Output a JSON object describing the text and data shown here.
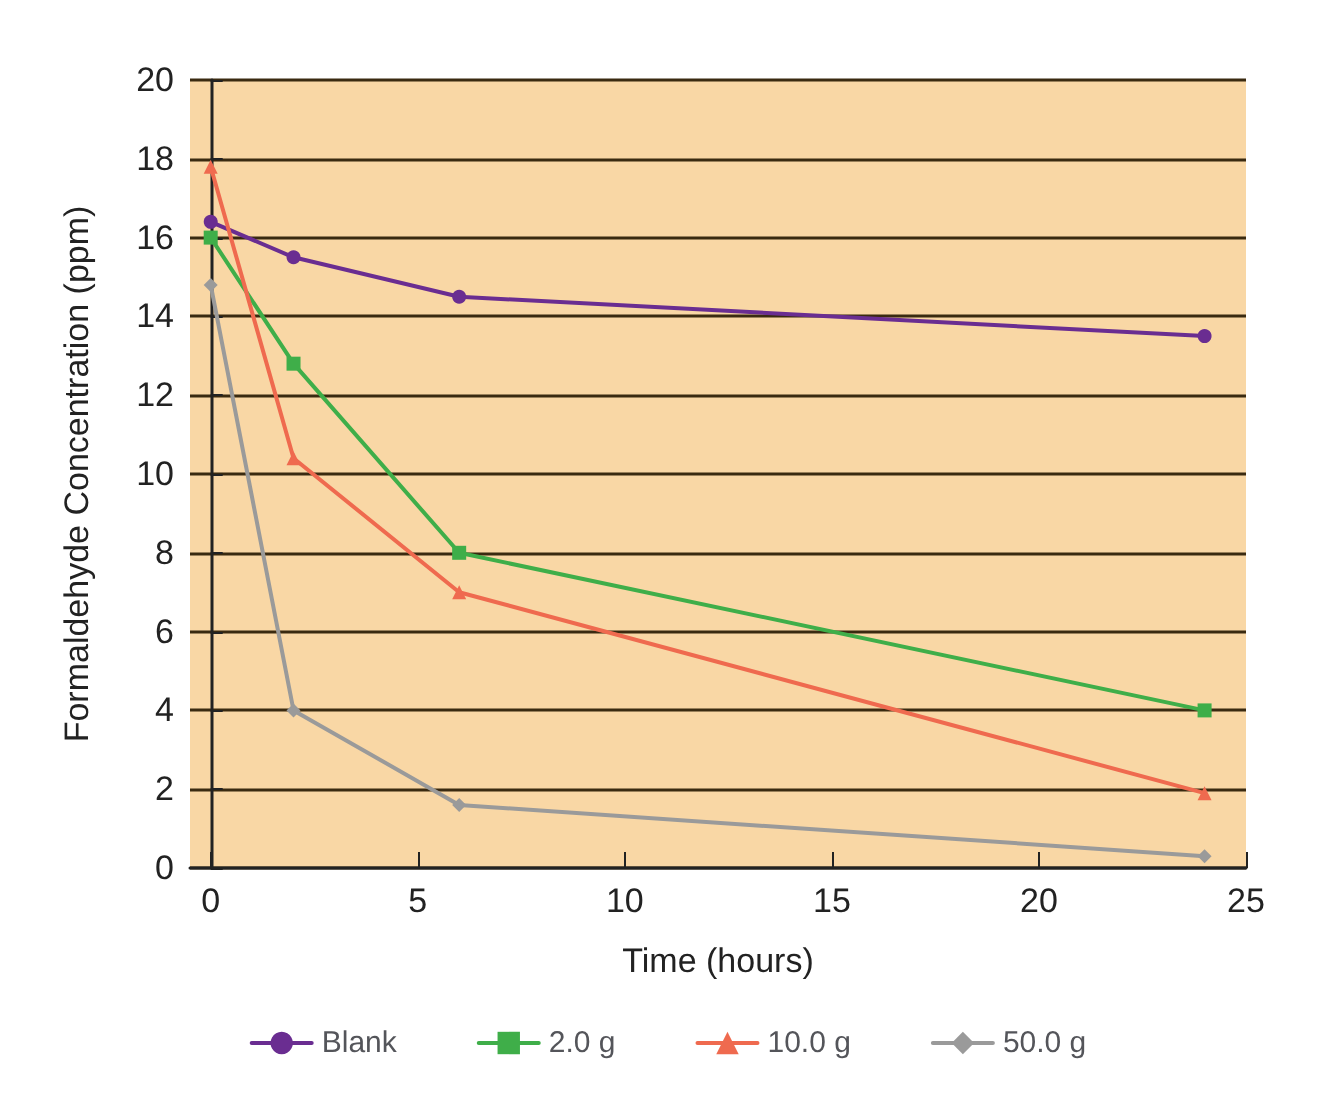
{
  "chart_data": {
    "type": "line",
    "xlabel": "Time (hours)",
    "ylabel": "Formaldehyde Concentration (ppm)",
    "x": [
      0,
      2,
      6,
      24
    ],
    "series": [
      {
        "name": "Blank",
        "color": "#6a2d91",
        "marker": "circle",
        "values": [
          16.4,
          15.5,
          14.5,
          13.5
        ]
      },
      {
        "name": "2.0 g",
        "color": "#3fae49",
        "marker": "square",
        "values": [
          16.0,
          12.8,
          8.0,
          4.0
        ]
      },
      {
        "name": "10.0 g",
        "color": "#ef6a4f",
        "marker": "triangle",
        "values": [
          17.8,
          10.4,
          7.0,
          1.9
        ]
      },
      {
        "name": "50.0 g",
        "color": "#9a9a9a",
        "marker": "diamond",
        "values": [
          14.8,
          4.0,
          1.6,
          0.3
        ]
      }
    ],
    "xlim": [
      -0.5,
      25
    ],
    "xticks": [
      0,
      5,
      10,
      15,
      20,
      25
    ],
    "ylim": [
      0,
      20
    ],
    "yticks": [
      0,
      2,
      4,
      6,
      8,
      10,
      12,
      14,
      16,
      18,
      20
    ],
    "grid": "y",
    "legend": "bottom",
    "line_style": "solid"
  }
}
